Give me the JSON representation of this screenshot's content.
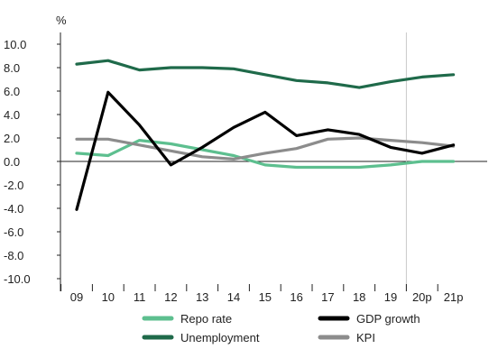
{
  "chart_data": {
    "type": "line",
    "ylabel": "%",
    "ylim": [
      -10,
      10
    ],
    "yticks": [
      "10.0",
      "8.0",
      "6.0",
      "4.0",
      "2.0",
      "0.0",
      "-2.0",
      "-4.0",
      "-6.0",
      "-8.0",
      "-10.0"
    ],
    "categories": [
      "09",
      "10",
      "11",
      "12",
      "13",
      "14",
      "15",
      "16",
      "17",
      "18",
      "19",
      "20p",
      "21p"
    ],
    "forecast_start": "20p",
    "grid": false,
    "legend_position": "bottom",
    "series": [
      {
        "name": "Repo rate",
        "color": "#5dbf8f",
        "values": [
          0.7,
          0.5,
          1.8,
          1.5,
          1.0,
          0.5,
          -0.3,
          -0.5,
          -0.5,
          -0.5,
          -0.3,
          0.0,
          0.0
        ]
      },
      {
        "name": "GDP growth",
        "color": "#000000",
        "values": [
          -4.1,
          5.9,
          3.1,
          -0.3,
          1.2,
          2.9,
          4.2,
          2.2,
          2.7,
          2.3,
          1.2,
          0.7,
          1.4
        ]
      },
      {
        "name": "Unemployment",
        "color": "#1f6a4a",
        "values": [
          8.3,
          8.6,
          7.8,
          8.0,
          8.0,
          7.9,
          7.4,
          6.9,
          6.7,
          6.3,
          6.8,
          7.2,
          7.4
        ]
      },
      {
        "name": "KPI",
        "color": "#8c8c8c",
        "values": [
          1.9,
          1.9,
          1.4,
          0.9,
          0.4,
          0.2,
          0.7,
          1.1,
          1.9,
          2.0,
          1.8,
          1.6,
          1.3
        ]
      }
    ]
  }
}
